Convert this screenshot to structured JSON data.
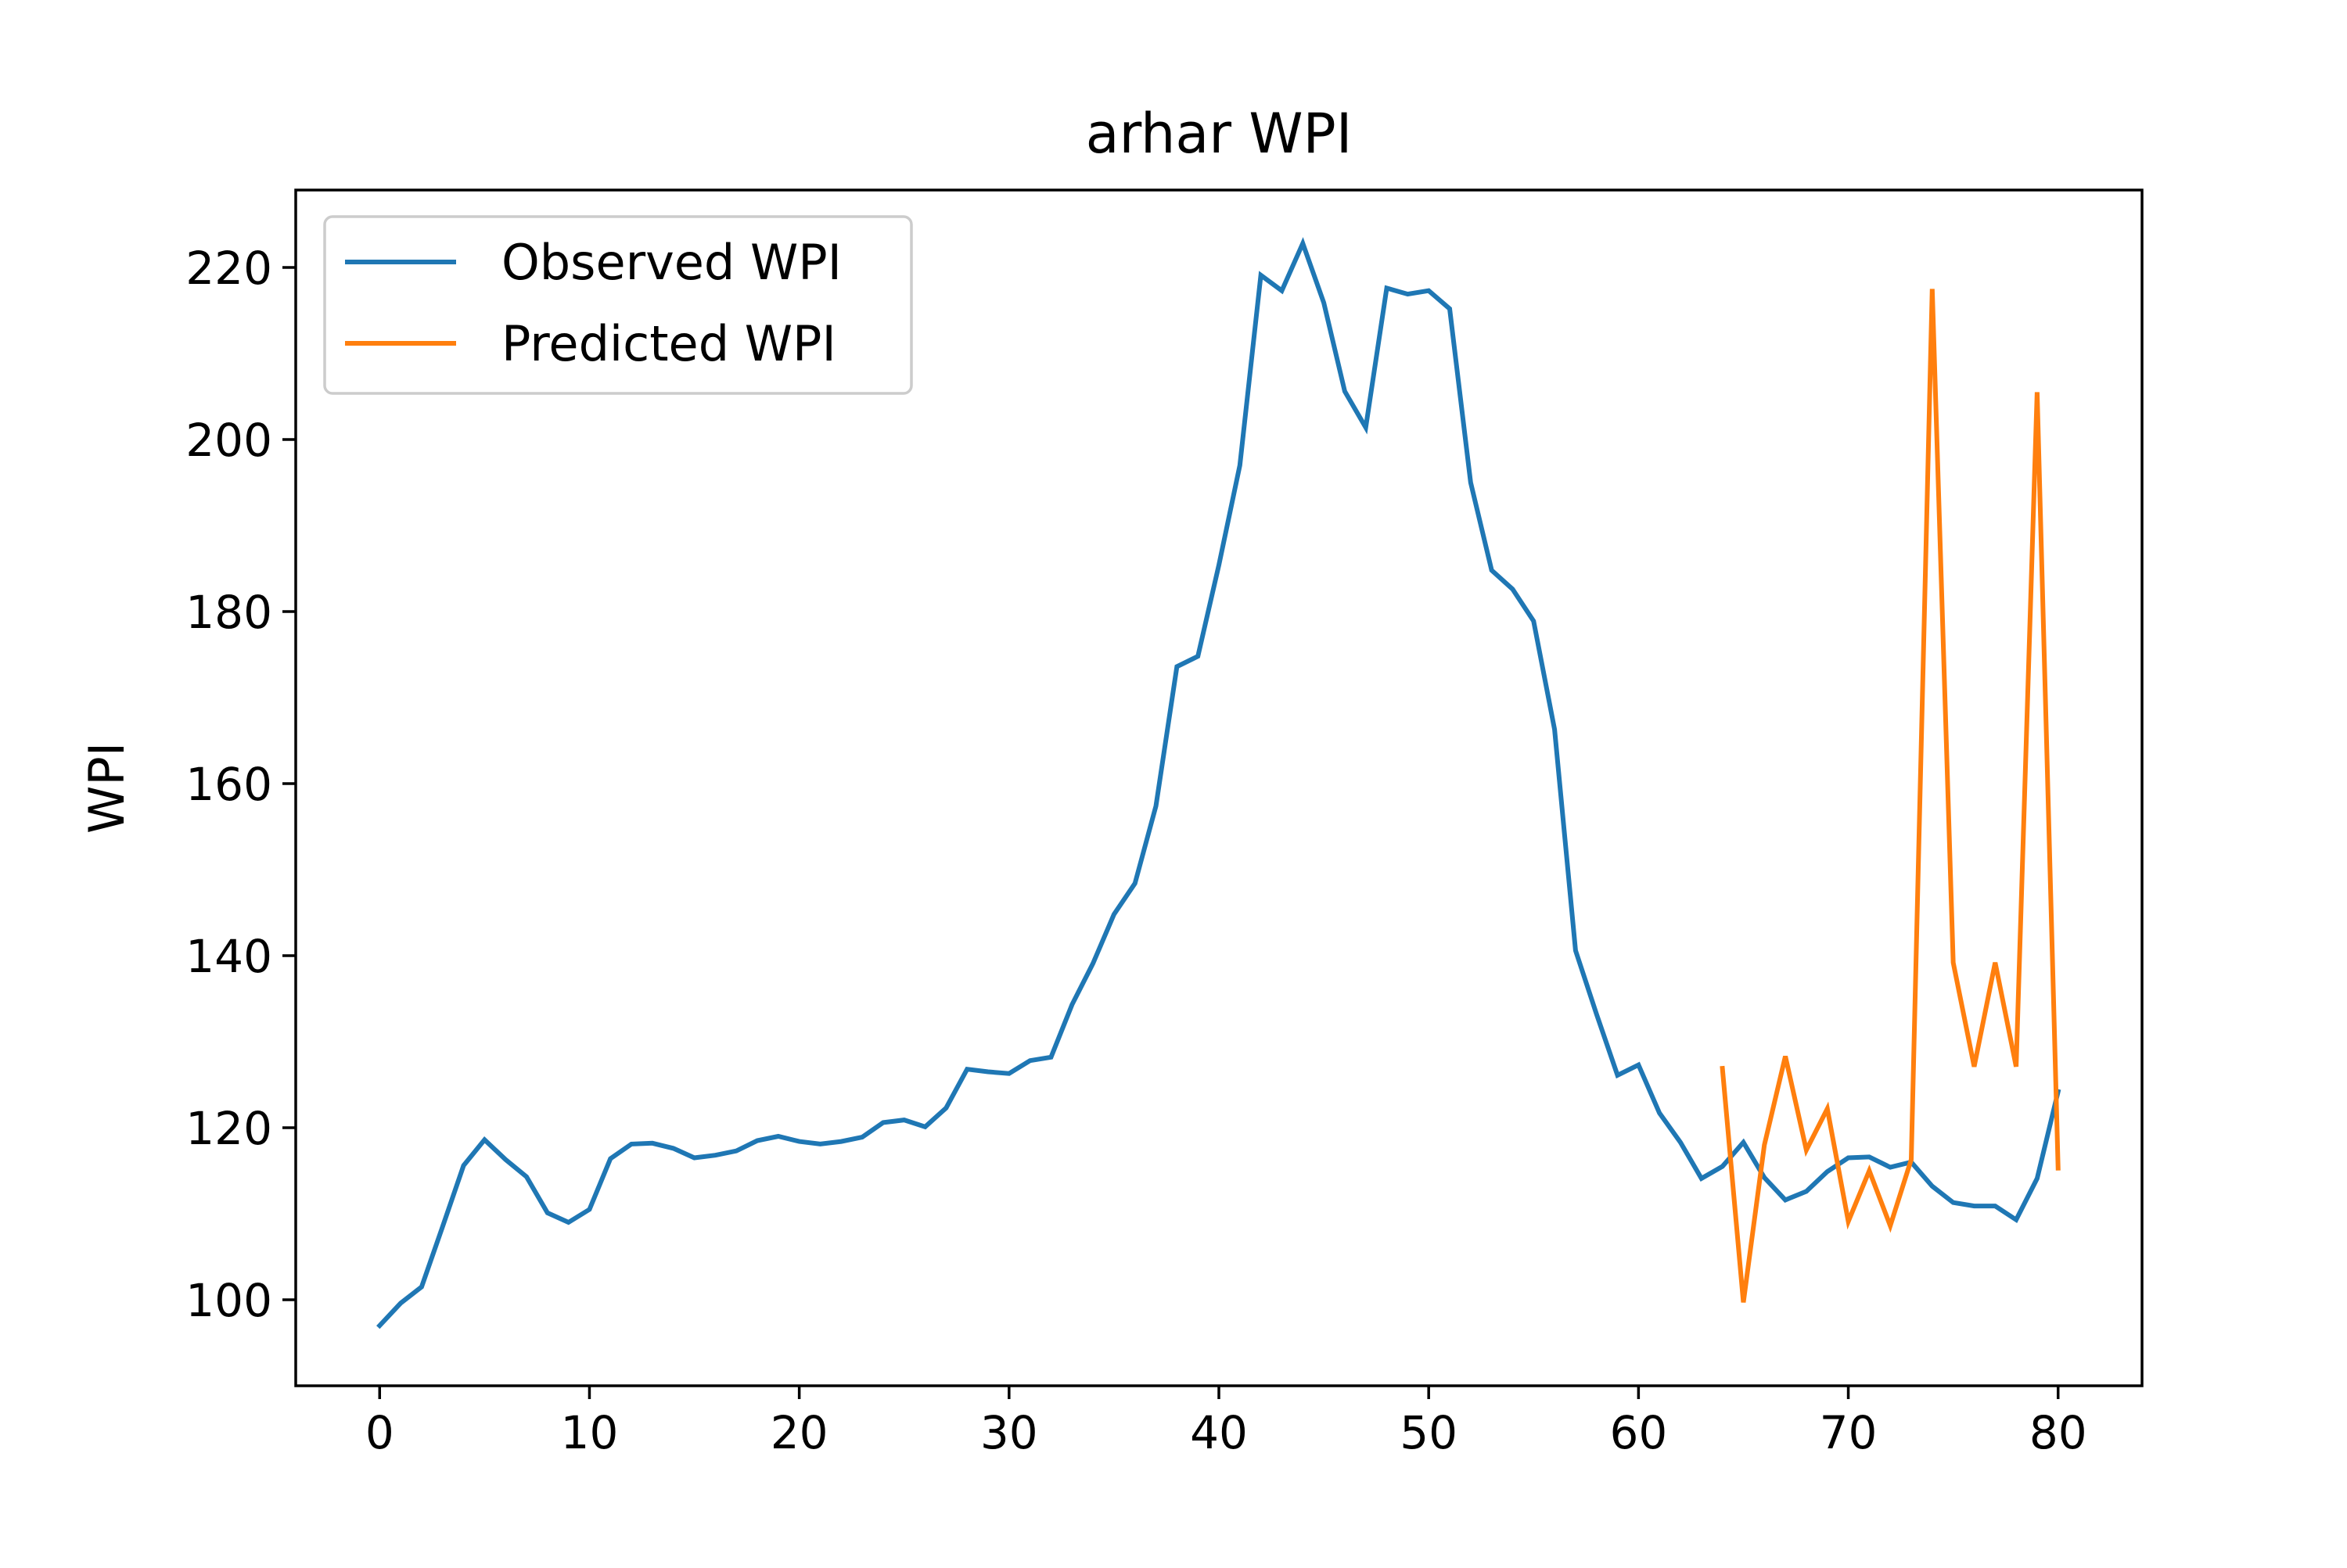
{
  "chart_data": {
    "type": "line",
    "title": "arhar WPI",
    "xlabel": "",
    "ylabel": "WPI",
    "xlim": [
      -4,
      84
    ],
    "ylim": [
      90,
      229
    ],
    "xticks": [
      0,
      10,
      20,
      30,
      40,
      50,
      60,
      70,
      80
    ],
    "yticks": [
      100,
      120,
      140,
      160,
      180,
      200,
      220
    ],
    "grid": false,
    "legend": "top-left",
    "series": [
      {
        "name": "Observed WPI",
        "color": "#1f77b4",
        "x": [
          0,
          1,
          2,
          3,
          4,
          5,
          6,
          7,
          8,
          9,
          10,
          11,
          12,
          13,
          14,
          15,
          16,
          17,
          18,
          19,
          20,
          21,
          22,
          23,
          24,
          25,
          26,
          27,
          28,
          29,
          30,
          31,
          32,
          33,
          34,
          35,
          36,
          37,
          38,
          39,
          40,
          41,
          42,
          43,
          44,
          45,
          46,
          47,
          48,
          49,
          50,
          51,
          52,
          53,
          54,
          55,
          56,
          57,
          58,
          59,
          60,
          61,
          62,
          63,
          64,
          65,
          66,
          67,
          68,
          69,
          70,
          71,
          72,
          73,
          74,
          75,
          76,
          77,
          78,
          79,
          80
        ],
        "values": [
          97.0,
          99.6,
          101.5,
          108.5,
          115.6,
          118.6,
          116.3,
          114.3,
          110.1,
          109.0,
          110.5,
          116.4,
          118.1,
          118.2,
          117.6,
          116.5,
          116.8,
          117.3,
          118.5,
          119.0,
          118.4,
          118.1,
          118.4,
          118.9,
          120.6,
          120.9,
          120.1,
          122.3,
          126.8,
          126.5,
          126.3,
          127.8,
          128.2,
          134.3,
          139.1,
          144.8,
          148.4,
          157.4,
          173.6,
          174.8,
          185.4,
          197.0,
          219.1,
          217.3,
          222.8,
          215.9,
          205.6,
          201.4,
          217.6,
          216.9,
          217.3,
          215.2,
          195.0,
          184.8,
          182.6,
          178.9,
          166.3,
          140.6,
          133.2,
          126.1,
          127.3,
          121.7,
          118.3,
          114.1,
          115.5,
          118.3,
          114.2,
          111.6,
          112.6,
          114.9,
          116.5,
          116.6,
          115.4,
          116.0,
          113.2,
          111.3,
          110.9,
          110.9,
          109.3,
          114.1,
          124.2
        ]
      },
      {
        "name": "Predicted WPI",
        "color": "#ff7f0e",
        "x": [
          64,
          65,
          66,
          67,
          68,
          69,
          70,
          71,
          72,
          73,
          74,
          75,
          76,
          77,
          78,
          79,
          80
        ],
        "values": [
          126.9,
          99.7,
          118.0,
          128.3,
          117.4,
          122.2,
          109.1,
          115.0,
          108.6,
          116.3,
          217.5,
          139.2,
          127.1,
          139.2,
          127.1,
          205.5,
          115.3
        ]
      }
    ]
  }
}
